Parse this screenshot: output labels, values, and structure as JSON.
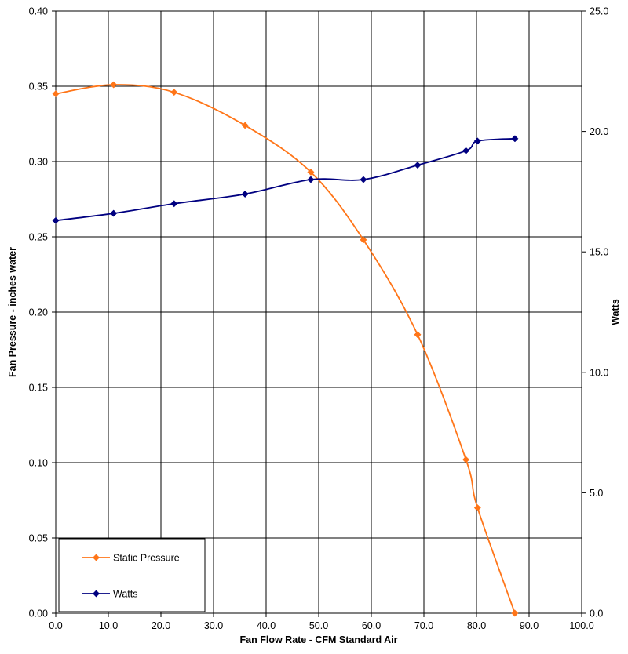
{
  "chart_data": {
    "type": "line",
    "xlabel": "Fan Flow Rate - CFM Standard Air",
    "ylabel": "Fan Pressure - inches water",
    "y2label": "Watts",
    "xlim": [
      0,
      100
    ],
    "ylim": [
      0,
      0.4
    ],
    "y2lim": [
      0,
      25
    ],
    "x_ticks": [
      "0.0",
      "10.0",
      "20.0",
      "30.0",
      "40.0",
      "50.0",
      "60.0",
      "70.0",
      "80.0",
      "90.0",
      "100.0"
    ],
    "y_ticks": [
      "0.00",
      "0.05",
      "0.10",
      "0.15",
      "0.20",
      "0.25",
      "0.30",
      "0.35",
      "0.40"
    ],
    "y2_ticks": [
      "0.0",
      "5.0",
      "10.0",
      "15.0",
      "20.0",
      "25.0"
    ],
    "grid": true,
    "legend_position": "bottom-left",
    "series": [
      {
        "name": "Static Pressure",
        "axis": "left",
        "color": "#FF7518",
        "marker": "diamond",
        "smooth": true,
        "x": [
          0.0,
          11.0,
          22.5,
          36.0,
          48.5,
          58.5,
          68.8,
          78.0,
          80.2,
          87.3
        ],
        "y": [
          0.345,
          0.351,
          0.346,
          0.324,
          0.293,
          0.248,
          0.185,
          0.102,
          0.07,
          0.0
        ]
      },
      {
        "name": "Watts",
        "axis": "right",
        "color": "#000080",
        "marker": "diamond",
        "smooth": true,
        "x": [
          0.0,
          11.0,
          22.5,
          36.0,
          48.5,
          58.5,
          68.8,
          78.0,
          80.2,
          87.3
        ],
        "y": [
          16.3,
          16.6,
          17.0,
          17.4,
          18.0,
          18.0,
          18.6,
          19.2,
          19.6,
          19.7
        ]
      }
    ]
  }
}
